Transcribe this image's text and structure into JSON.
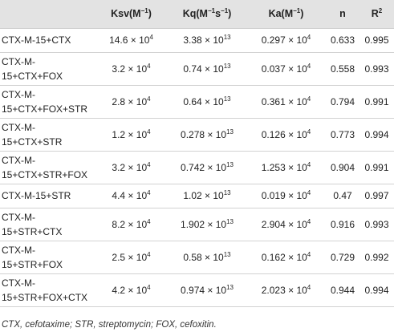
{
  "table": {
    "headers": [
      {
        "base": "",
        "sup": "",
        "post": ""
      },
      {
        "base": "Ksv(M",
        "sup": "−1",
        "post": ")"
      },
      {
        "base": "Kq(M",
        "sup": "−1",
        "post": "s",
        "sup2": "−1",
        "post2": ")"
      },
      {
        "base": "Ka(M",
        "sup": "−1",
        "post": ")"
      },
      {
        "base": "n",
        "sup": "",
        "post": ""
      },
      {
        "base": "R",
        "sup": "2",
        "post": ""
      }
    ],
    "rows": [
      {
        "name_lines": [
          "CTX-M-15+CTX"
        ],
        "ksv": {
          "m": "14.6 × 10",
          "e": "4"
        },
        "kq": {
          "m": "3.38 × 10",
          "e": "13"
        },
        "ka": {
          "m": "0.297 × 10",
          "e": "4"
        },
        "n": "0.633",
        "r2": "0.995"
      },
      {
        "name_lines": [
          "CTX-M-",
          "15+CTX+FOX"
        ],
        "ksv": {
          "m": "3.2 × 10",
          "e": "4"
        },
        "kq": {
          "m": "0.74 × 10",
          "e": "13"
        },
        "ka": {
          "m": "0.037 × 10",
          "e": "4"
        },
        "n": "0.558",
        "r2": "0.993"
      },
      {
        "name_lines": [
          "CTX-M-",
          "15+CTX+FOX+STR"
        ],
        "ksv": {
          "m": "2.8 × 10",
          "e": "4"
        },
        "kq": {
          "m": "0.64 × 10",
          "e": "13"
        },
        "ka": {
          "m": "0.361 × 10",
          "e": "4"
        },
        "n": "0.794",
        "r2": "0.991"
      },
      {
        "name_lines": [
          "CTX-M-",
          "15+CTX+STR"
        ],
        "ksv": {
          "m": "1.2 × 10",
          "e": "4"
        },
        "kq": {
          "m": "0.278 × 10",
          "e": "13"
        },
        "ka": {
          "m": "0.126 × 10",
          "e": "4"
        },
        "n": "0.773",
        "r2": "0.994"
      },
      {
        "name_lines": [
          "CTX-M-",
          "15+CTX+STR+FOX"
        ],
        "ksv": {
          "m": "3.2 × 10",
          "e": "4"
        },
        "kq": {
          "m": "0.742 × 10",
          "e": "13"
        },
        "ka": {
          "m": "1.253 × 10",
          "e": "4"
        },
        "n": "0.904",
        "r2": "0.991"
      },
      {
        "name_lines": [
          "CTX-M-15+STR"
        ],
        "ksv": {
          "m": "4.4 × 10",
          "e": "4"
        },
        "kq": {
          "m": "1.02 × 10",
          "e": "13"
        },
        "ka": {
          "m": "0.019 × 10",
          "e": "4"
        },
        "n": "0.47",
        "r2": "0.997"
      },
      {
        "name_lines": [
          "CTX-M-",
          "15+STR+CTX"
        ],
        "ksv": {
          "m": "8.2 × 10",
          "e": "4"
        },
        "kq": {
          "m": "1.902 × 10",
          "e": "13"
        },
        "ka": {
          "m": "2.904 × 10",
          "e": "4"
        },
        "n": "0.916",
        "r2": "0.993"
      },
      {
        "name_lines": [
          "CTX-M-",
          "15+STR+FOX"
        ],
        "ksv": {
          "m": "2.5 × 10",
          "e": "4"
        },
        "kq": {
          "m": "0.58 × 10",
          "e": "13"
        },
        "ka": {
          "m": "0.162 × 10",
          "e": "4"
        },
        "n": "0.729",
        "r2": "0.992"
      },
      {
        "name_lines": [
          "CTX-M-",
          "15+STR+FOX+CTX"
        ],
        "ksv": {
          "m": "4.2 × 10",
          "e": "4"
        },
        "kq": {
          "m": "0.974 × 10",
          "e": "13"
        },
        "ka": {
          "m": "2.023 × 10",
          "e": "4"
        },
        "n": "0.944",
        "r2": "0.994"
      }
    ]
  },
  "footnote": "CTX, cefotaxime; STR, streptomycin; FOX, cefoxitin."
}
